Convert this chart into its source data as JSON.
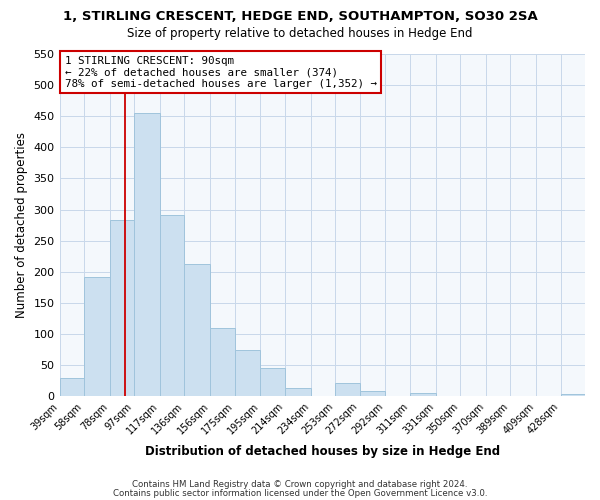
{
  "title": "1, STIRLING CRESCENT, HEDGE END, SOUTHAMPTON, SO30 2SA",
  "subtitle": "Size of property relative to detached houses in Hedge End",
  "xlabel": "Distribution of detached houses by size in Hedge End",
  "ylabel": "Number of detached properties",
  "bar_color": "#cce0f0",
  "bar_edge_color": "#a0c4dc",
  "grid_color": "#c8d8ea",
  "bg_color": "#ffffff",
  "plot_bg_color": "#f4f8fc",
  "vline_color": "#cc0000",
  "vline_x": 90,
  "categories": [
    "39sqm",
    "58sqm",
    "78sqm",
    "97sqm",
    "117sqm",
    "136sqm",
    "156sqm",
    "175sqm",
    "195sqm",
    "214sqm",
    "234sqm",
    "253sqm",
    "272sqm",
    "292sqm",
    "311sqm",
    "331sqm",
    "350sqm",
    "370sqm",
    "389sqm",
    "409sqm",
    "428sqm"
  ],
  "bin_edges": [
    39,
    58,
    78,
    97,
    117,
    136,
    156,
    175,
    195,
    214,
    234,
    253,
    272,
    292,
    311,
    331,
    350,
    370,
    389,
    409,
    428,
    447
  ],
  "values": [
    30,
    192,
    284,
    456,
    291,
    212,
    110,
    74,
    46,
    14,
    0,
    22,
    8,
    0,
    5,
    0,
    0,
    0,
    0,
    0,
    3
  ],
  "ylim": [
    0,
    550
  ],
  "yticks": [
    0,
    50,
    100,
    150,
    200,
    250,
    300,
    350,
    400,
    450,
    500,
    550
  ],
  "annotation_title": "1 STIRLING CRESCENT: 90sqm",
  "annotation_line1": "← 22% of detached houses are smaller (374)",
  "annotation_line2": "78% of semi-detached houses are larger (1,352) →",
  "footer1": "Contains HM Land Registry data © Crown copyright and database right 2024.",
  "footer2": "Contains public sector information licensed under the Open Government Licence v3.0."
}
